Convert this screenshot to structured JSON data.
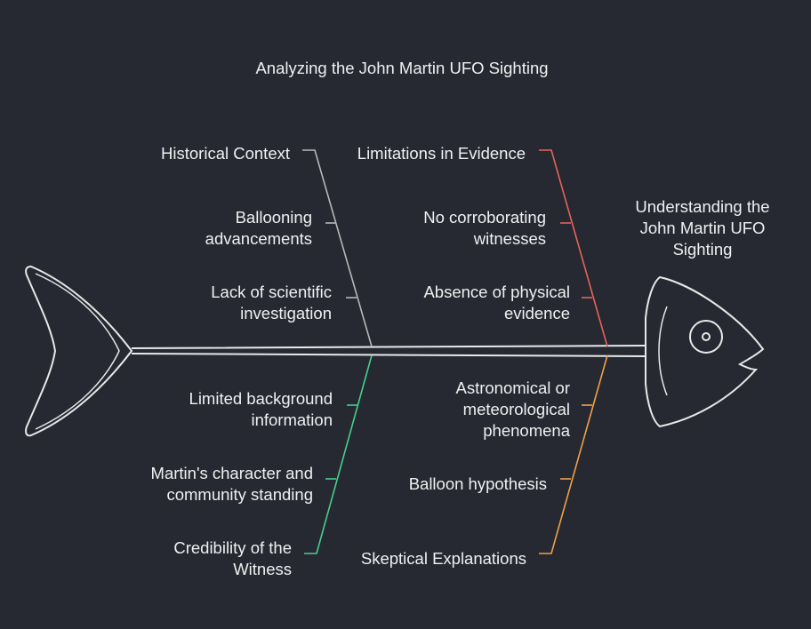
{
  "title": "Analyzing the John Martin UFO Sighting",
  "head_label": "Understanding the\nJohn Martin UFO\nSighting",
  "colors": {
    "background": "#262932",
    "outline": "#e8e8e8",
    "historical": "#b8b8b8",
    "evidence": "#e8625a",
    "witness": "#46d08c",
    "skeptical": "#f0a04b"
  },
  "categories": {
    "historical": {
      "label": "Historical Context",
      "causes": [
        "Ballooning\nadvancements",
        "Lack of scientific\ninvestigation"
      ]
    },
    "evidence": {
      "label": "Limitations in Evidence",
      "causes": [
        "No corroborating\nwitnesses",
        "Absence of physical\nevidence"
      ]
    },
    "witness": {
      "label": "Credibility of the\nWitness",
      "causes": [
        "Limited background\ninformation",
        "Martin's character and\ncommunity standing"
      ]
    },
    "skeptical": {
      "label": "Skeptical Explanations",
      "causes": [
        "Astronomical or\nmeteorological\nphenomena",
        "Balloon hypothesis"
      ]
    }
  }
}
